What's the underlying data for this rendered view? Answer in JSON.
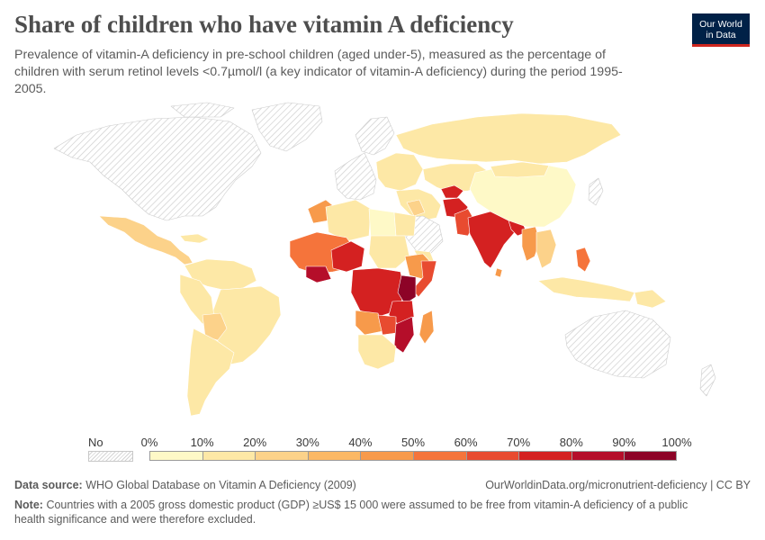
{
  "title": "Share of children who have vitamin A deficiency",
  "subtitle": "Prevalence of vitamin-A deficiency in pre-school children (aged under-5), measured as the percentage of children with serum retinol levels <0.7µmol/l (a key indicator of vitamin-A deficiency) during the period 1995-2005.",
  "logo": {
    "line1": "Our World",
    "line2": "in Data",
    "bg_color": "#002147",
    "accent_color": "#ce261e"
  },
  "legend": {
    "no_data_label": "No data",
    "ticks": [
      "0%",
      "10%",
      "20%",
      "30%",
      "40%",
      "50%",
      "60%",
      "70%",
      "80%",
      "90%",
      "100%"
    ],
    "colors": [
      "#fef9c7",
      "#fde8a6",
      "#fcd28a",
      "#fbb865",
      "#f79a4b",
      "#f5743b",
      "#e84b30",
      "#d42121",
      "#b50e2a",
      "#8d0327"
    ]
  },
  "regions": {
    "no_data": [
      "North America",
      "Greenland",
      "Western Europe",
      "Scandinavia",
      "Australia",
      "New Zealand",
      "Japan",
      "Korea",
      "Saudi Arabia",
      "Gulf states",
      "Libya",
      "Western Sahara"
    ],
    "severe_70_plus": [
      "India",
      "Afghanistan",
      "Pakistan",
      "Sub-Saharan Africa core",
      "Kenya",
      "Mozambique",
      "Tajikistan"
    ],
    "high_50_70": [
      "West Africa",
      "Ethiopia",
      "Somalia",
      "Madagascar",
      "Myanmar",
      "Philippines",
      "Nepal/Bangladesh"
    ],
    "moderate_20_50": [
      "Morocco",
      "Angola",
      "Namibia",
      "Bolivia",
      "Indonesia",
      "Mongolia"
    ],
    "low_0_20": [
      "South America",
      "Mexico",
      "Russia",
      "China",
      "Eastern Europe",
      "Central Asia",
      "Egypt"
    ]
  },
  "footer": {
    "source_label": "Data source:",
    "source_text": "WHO Global Database on Vitamin A Deficiency (2009)",
    "url": "OurWorldinData.org/micronutrient-deficiency | CC BY",
    "note_label": "Note:",
    "note_text": "Countries with a 2005 gross domestic product (GDP) ≥US$ 15 000 were assumed to be free from vitamin-A deficiency of a public health significance and were therefore excluded."
  }
}
